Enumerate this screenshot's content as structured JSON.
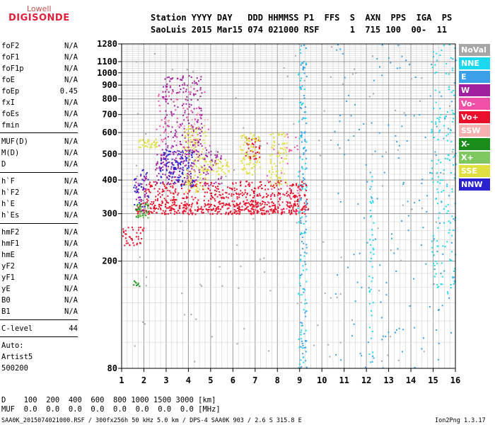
{
  "logo": {
    "line1": "Lowell",
    "line2": "DIGISONDE"
  },
  "header": {
    "row1": "Station YYYY DAY   DDD HHMMSS P1  FFS  S  AXN  PPS  IGA  PS",
    "row2": "SaoLuis 2015 Mar15 074 021000 RSF      1  715 100  00-  11"
  },
  "params": {
    "group1": [
      {
        "label": "foF2",
        "value": "N/A"
      },
      {
        "label": "foF1",
        "value": "N/A"
      },
      {
        "label": "foF1p",
        "value": "N/A"
      },
      {
        "label": "foE",
        "value": "N/A"
      },
      {
        "label": "foEp",
        "value": "0.45"
      },
      {
        "label": "fxI",
        "value": "N/A"
      },
      {
        "label": "foEs",
        "value": "N/A"
      },
      {
        "label": "fmin",
        "value": "N/A"
      }
    ],
    "group2": [
      {
        "label": "MUF(D)",
        "value": "N/A"
      },
      {
        "label": "M(D)",
        "value": "N/A"
      },
      {
        "label": "D",
        "value": "N/A"
      }
    ],
    "group3": [
      {
        "label": "h`F",
        "value": "N/A"
      },
      {
        "label": "h`F2",
        "value": "N/A"
      },
      {
        "label": "h`E",
        "value": "N/A"
      },
      {
        "label": "h`Es",
        "value": "N/A"
      }
    ],
    "group4": [
      {
        "label": "hmF2",
        "value": "N/A"
      },
      {
        "label": "hmF1",
        "value": "N/A"
      },
      {
        "label": "hmE",
        "value": "N/A"
      },
      {
        "label": "yF2",
        "value": "N/A"
      },
      {
        "label": "yF1",
        "value": "N/A"
      },
      {
        "label": "yE",
        "value": "N/A"
      },
      {
        "label": "B0",
        "value": "N/A"
      },
      {
        "label": "B1",
        "value": "N/A"
      }
    ],
    "clevel": {
      "label": "C-level",
      "value": "44"
    },
    "auto": {
      "line1": "Auto:",
      "line2": "Artist5",
      "line3": "500200"
    }
  },
  "legend": [
    {
      "label": "NoVal",
      "color": "#a6a6a6"
    },
    {
      "label": "NNE",
      "color": "#1ad9ee"
    },
    {
      "label": "E",
      "color": "#3aa0e8"
    },
    {
      "label": "W",
      "color": "#a020a0"
    },
    {
      "label": "Vo-",
      "color": "#f050a8"
    },
    {
      "label": "Vo+",
      "color": "#e8102a"
    },
    {
      "label": "SSW",
      "color": "#f5b0b0"
    },
    {
      "label": "X-",
      "color": "#1a8c1a"
    },
    {
      "label": "X+",
      "color": "#7fc860"
    },
    {
      "label": "SSE",
      "color": "#e0e040"
    },
    {
      "label": "NNW",
      "color": "#2a22d0"
    }
  ],
  "bottom": {
    "d_row": "D    100  200  400  600  800 1000 1500 3000 [km]",
    "muf_row": "MUF  0.0  0.0  0.0  0.0  0.0  0.0  0.0  0.0 [MHz]"
  },
  "footer": {
    "left": "SAA0K_2015074021000.RSF / 300fx256h 50 kHz 5.0 km / DPS-4 SAA0K 903 / 2.6 S 315.8 E",
    "right": "Ion2Png 1.3.17"
  },
  "chart_data": {
    "type": "scatter",
    "title": "",
    "xlabel": "",
    "ylabel": "",
    "xlim": [
      1,
      16
    ],
    "ylim": [
      80,
      1280
    ],
    "x_ticks": [
      1,
      2,
      3,
      4,
      5,
      6,
      7,
      8,
      9,
      10,
      11,
      12,
      13,
      14,
      15,
      16
    ],
    "y_ticks": [
      80,
      200,
      300,
      400,
      500,
      600,
      700,
      800,
      900,
      1000,
      1100,
      1280
    ],
    "y_scale": "log",
    "grid": true,
    "x_unit": "MHz",
    "y_unit": "km",
    "series": [
      {
        "name": "Vo+",
        "color": "#e8102a",
        "clusters": [
          {
            "x": [
              1.6,
              9.4
            ],
            "y": [
              300,
              330
            ],
            "n": 420
          },
          {
            "x": [
              2.0,
              9.3
            ],
            "y": [
              330,
              400
            ],
            "n": 380
          },
          {
            "x": [
              1.0,
              2.0
            ],
            "y": [
              230,
              270
            ],
            "n": 40
          },
          {
            "x": [
              6.5,
              7.2
            ],
            "y": [
              480,
              580
            ],
            "n": 40
          }
        ]
      },
      {
        "name": "W",
        "color": "#a020a0",
        "clusters": [
          {
            "x": [
              2.5,
              5.5
            ],
            "y": [
              380,
              520
            ],
            "n": 180
          },
          {
            "x": [
              2.8,
              4.6
            ],
            "y": [
              500,
              980
            ],
            "n": 200
          },
          {
            "x": [
              1.6,
              2.1
            ],
            "y": [
              300,
              420
            ],
            "n": 40
          }
        ]
      },
      {
        "name": "NNW",
        "color": "#2a22d0",
        "clusters": [
          {
            "x": [
              2.7,
              4.2
            ],
            "y": [
              380,
              520
            ],
            "n": 120
          },
          {
            "x": [
              1.5,
              2.2
            ],
            "y": [
              320,
              440
            ],
            "n": 30
          }
        ]
      },
      {
        "name": "SSE",
        "color": "#e0e040",
        "clusters": [
          {
            "x": [
              3.8,
              4.8
            ],
            "y": [
              360,
              640
            ],
            "n": 130
          },
          {
            "x": [
              6.3,
              7.2
            ],
            "y": [
              420,
              600
            ],
            "n": 90
          },
          {
            "x": [
              7.6,
              8.4
            ],
            "y": [
              380,
              600
            ],
            "n": 80
          },
          {
            "x": [
              1.7,
              2.6
            ],
            "y": [
              530,
              570
            ],
            "n": 40
          },
          {
            "x": [
              4.8,
              5.8
            ],
            "y": [
              420,
              480
            ],
            "n": 40
          }
        ]
      },
      {
        "name": "X-",
        "color": "#1a8c1a",
        "clusters": [
          {
            "x": [
              1.6,
              2.2
            ],
            "y": [
              290,
              330
            ],
            "n": 25
          },
          {
            "x": [
              1.5,
              1.9
            ],
            "y": [
              160,
              170
            ],
            "n": 8
          }
        ]
      },
      {
        "name": "X+",
        "color": "#7fc860",
        "clusters": [
          {
            "x": [
              1.6,
              2.2
            ],
            "y": [
              290,
              330
            ],
            "n": 20
          }
        ]
      },
      {
        "name": "Vo-",
        "color": "#f050a8",
        "clusters": [
          {
            "x": [
              2.5,
              5.0
            ],
            "y": [
              500,
              900
            ],
            "n": 60
          },
          {
            "x": [
              7.5,
              9.0
            ],
            "y": [
              300,
              600
            ],
            "n": 40
          }
        ]
      },
      {
        "name": "NNE",
        "color": "#1ad9ee",
        "clusters": [
          {
            "x": [
              14.9,
              16.0
            ],
            "y": [
              150,
              1280
            ],
            "n": 160
          },
          {
            "x": [
              8.9,
              9.3
            ],
            "y": [
              80,
              1280
            ],
            "n": 90
          },
          {
            "x": [
              12.1,
              12.3
            ],
            "y": [
              80,
              450
            ],
            "n": 40
          }
        ]
      },
      {
        "name": "E",
        "color": "#3aa0e8",
        "clusters": [
          {
            "x": [
              9.0,
              9.3
            ],
            "y": [
              80,
              1280
            ],
            "n": 100
          },
          {
            "x": [
              10.5,
              16.0
            ],
            "y": [
              80,
              1280
            ],
            "n": 160
          }
        ]
      },
      {
        "name": "NoVal",
        "color": "#a6a6a6",
        "clusters": [
          {
            "x": [
              1.5,
              16.0
            ],
            "y": [
              80,
              1280
            ],
            "n": 120
          }
        ]
      },
      {
        "name": "SSW",
        "color": "#f5b0b0",
        "clusters": [
          {
            "x": [
              3.0,
              5.0
            ],
            "y": [
              600,
              900
            ],
            "n": 20
          }
        ]
      }
    ]
  }
}
